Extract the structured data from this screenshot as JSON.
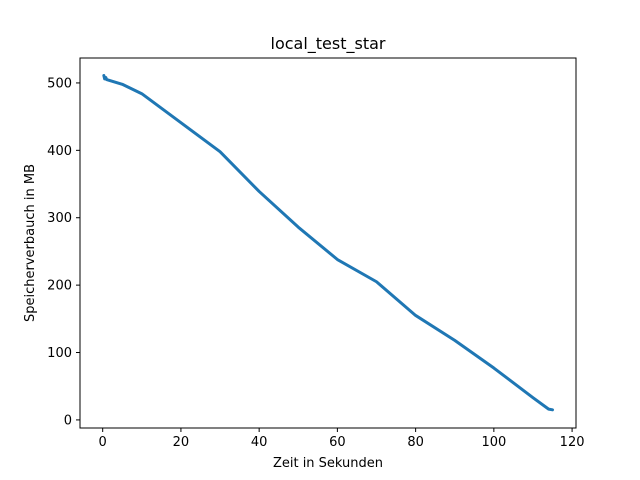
{
  "chart_data": {
    "type": "line",
    "title": "local_test_star",
    "xlabel": "Zeit in Sekunden",
    "ylabel": "Speicherverbauch in MB",
    "xlim": [
      -5.8,
      121
    ],
    "ylim": [
      -12,
      537
    ],
    "xticks": [
      0,
      20,
      40,
      60,
      80,
      100,
      120
    ],
    "yticks": [
      0,
      100,
      200,
      300,
      400,
      500
    ],
    "grid": false,
    "series": [
      {
        "color": "#1f77b4",
        "x": [
          0.3,
          0.5,
          0.8,
          1.0,
          5,
          10,
          20,
          30,
          40,
          50,
          60,
          70,
          80,
          90,
          100,
          110,
          114,
          115
        ],
        "y": [
          511,
          506,
          508,
          505,
          498,
          484,
          441,
          398,
          339,
          286,
          238,
          205,
          155,
          118,
          77,
          33,
          16,
          15
        ]
      }
    ]
  }
}
